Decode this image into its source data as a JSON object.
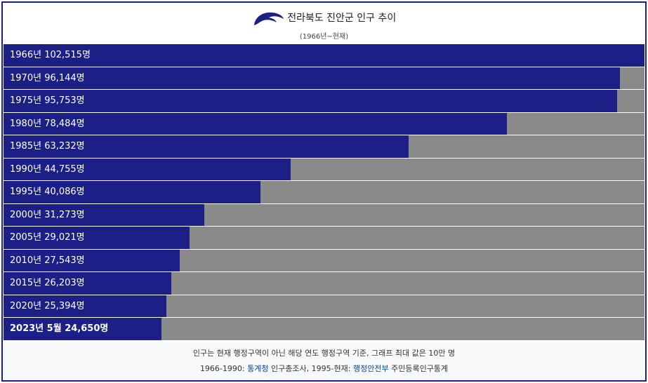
{
  "chart_data": {
    "type": "bar",
    "orientation": "horizontal",
    "title": "전라북도 진안군 인구 추이",
    "subtitle": "(1966년~현재)",
    "categories": [
      "1966년",
      "1970년",
      "1975년",
      "1980년",
      "1985년",
      "1990년",
      "1995년",
      "2000년",
      "2005년",
      "2010년",
      "2015년",
      "2020년",
      "2023년 5월"
    ],
    "values": [
      102515,
      96144,
      95753,
      78484,
      63232,
      44755,
      40086,
      31273,
      29021,
      27543,
      26203,
      25394,
      24650
    ],
    "value_labels": [
      "102,515명",
      "96,144명",
      "95,753명",
      "78,484명",
      "63,232명",
      "44,755명",
      "40,086명",
      "31,273명",
      "29,021명",
      "27,543명",
      "26,203명",
      "25,394명",
      "24,650명"
    ],
    "xlim": [
      0,
      100000
    ],
    "color": "#1b1f86",
    "track_color": "#8a8a8a",
    "notes": [
      "인구는 현재 행정구역이 아닌 해당 연도 행정구역 기준, 그래프 최대 값은 10만 명",
      [
        "1966-1990: ",
        "통계청",
        " 인구총조사, 1995-현재: ",
        "행정안전부",
        " 주민등록인구통계"
      ]
    ]
  }
}
